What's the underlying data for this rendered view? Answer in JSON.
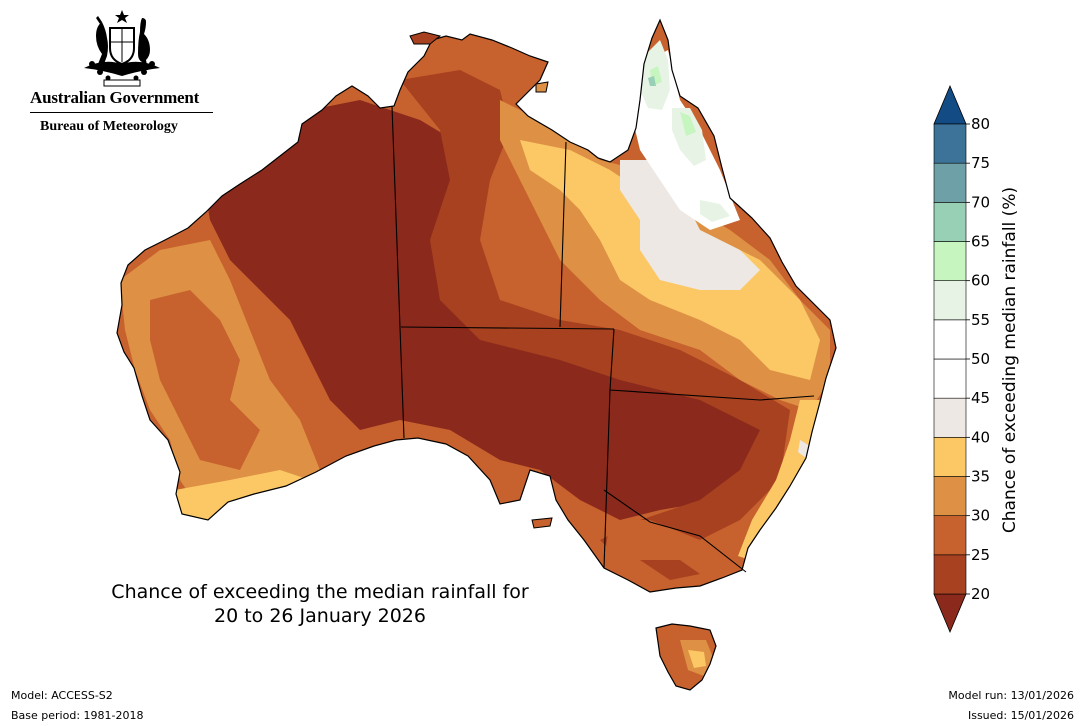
{
  "header": {
    "government": "Australian Government",
    "agency": "Bureau of Meteorology"
  },
  "title": {
    "line1": "Chance of exceeding the median rainfall for",
    "line2": "20 to 26 January 2026"
  },
  "footer": {
    "model": "Model: ACCESS-S2",
    "base_period": "Base period: 1981-2018",
    "model_run": "Model run: 13/01/2026",
    "issued": "Issued: 15/01/2026"
  },
  "colorbar": {
    "title": "Chance of exceeding median rainfall (%)",
    "ticks": [
      "20",
      "25",
      "30",
      "35",
      "40",
      "45",
      "50",
      "55",
      "60",
      "65",
      "70",
      "75",
      "80"
    ],
    "bins": [
      {
        "range": "<20",
        "color": "#8b2a1c"
      },
      {
        "range": "20-25",
        "color": "#a8411f"
      },
      {
        "range": "25-30",
        "color": "#c7612e"
      },
      {
        "range": "30-35",
        "color": "#de9144"
      },
      {
        "range": "35-40",
        "color": "#fcc865"
      },
      {
        "range": "40-45",
        "color": "#ede8e3"
      },
      {
        "range": "45-50",
        "color": "#ffffff"
      },
      {
        "range": "50-55",
        "color": "#ffffff"
      },
      {
        "range": "55-60",
        "color": "#e7f4e5"
      },
      {
        "range": "60-65",
        "color": "#c6f5c0"
      },
      {
        "range": "65-70",
        "color": "#98d0b6"
      },
      {
        "range": "70-75",
        "color": "#6ea1a7"
      },
      {
        "range": "75-80",
        "color": "#3d7399"
      },
      {
        "range": ">80",
        "color": "#134b84"
      }
    ]
  }
}
